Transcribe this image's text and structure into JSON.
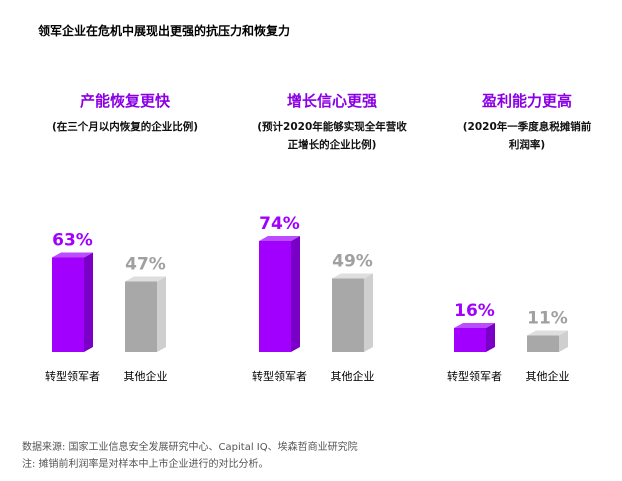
{
  "title": "领军企业在危机中展现出更强的抗压力和恢复力",
  "colors": {
    "accent": "#8a00e6",
    "leader": "#a100ff",
    "others": "#b3b3b3",
    "text": "#000000"
  },
  "chart_data": [
    {
      "type": "bar",
      "title": "产能恢复更快",
      "subtitle": [
        "(在三个月以内恢复的企业比例)"
      ],
      "categories": [
        "转型领军者",
        "其他企业"
      ],
      "values": [
        63,
        47
      ],
      "value_labels": [
        "63%",
        "47%"
      ],
      "unit": "%",
      "ylim": [
        0,
        100
      ],
      "grid": false
    },
    {
      "type": "bar",
      "title": "增长信心更强",
      "subtitle": [
        "(预计2020年能够实现全年营收",
        "正增长的企业比例)"
      ],
      "categories": [
        "转型领军者",
        "其他企业"
      ],
      "values": [
        74,
        49
      ],
      "value_labels": [
        "74%",
        "49%"
      ],
      "unit": "%",
      "ylim": [
        0,
        100
      ],
      "grid": false
    },
    {
      "type": "bar",
      "title": "盈利能力更高",
      "subtitle": [
        "(2020年一季度息税摊销前",
        "利润率)"
      ],
      "categories": [
        "转型领军者",
        "其他企业"
      ],
      "values": [
        16,
        11
      ],
      "value_labels": [
        "16%",
        "11%"
      ],
      "unit": "%",
      "ylim": [
        0,
        100
      ],
      "grid": false
    }
  ],
  "footer": {
    "source": "数据来源: 国家工业信息安全发展研究中心、Capital IQ、埃森哲商业研究院",
    "note": "注: 摊销前利润率是对样本中上市企业进行的对比分析。"
  }
}
